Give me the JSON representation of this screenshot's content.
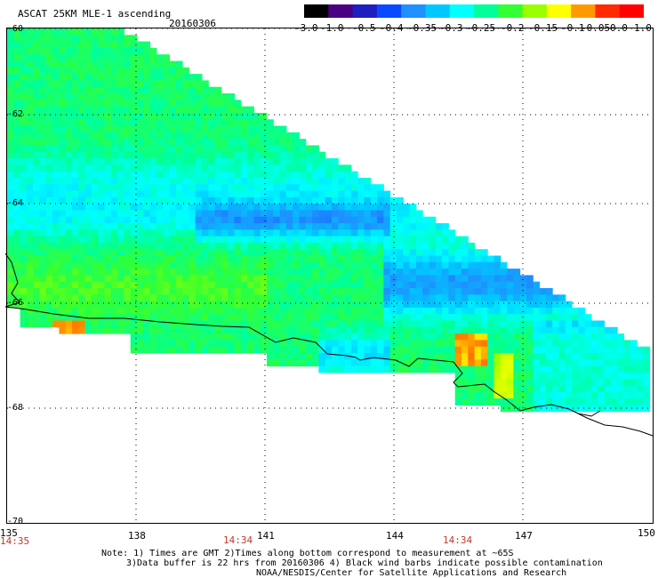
{
  "header": {
    "product": "ASCAT 25KM MLE-1 ascending",
    "date": "20160306"
  },
  "colorbar": {
    "labels": [
      "-3.0",
      "-1.0",
      "-0.5",
      "-0.4",
      "-0.35",
      "-0.3",
      "-0.25",
      "-0.2",
      "-0.15",
      "-0.1",
      "-0.05",
      "0.0",
      "1.0"
    ],
    "colors": [
      "#000000",
      "#4b0082",
      "#1f1fbf",
      "#0a4aff",
      "#1e90ff",
      "#00c8ff",
      "#00ffff",
      "#00ff9a",
      "#33ff33",
      "#99ff00",
      "#ffff00",
      "#ff9900",
      "#ff2a00",
      "#ff0000"
    ]
  },
  "map": {
    "lat_labels": [
      "-60",
      "-62",
      "-64",
      "-66",
      "-68",
      "-70"
    ],
    "lon_labels": [
      "135",
      "138",
      "141",
      "144",
      "147",
      "150"
    ],
    "time_labels": [
      "14:35",
      "14:34",
      "14:34"
    ]
  },
  "notes": {
    "line1": "Note: 1) Times are GMT 2)Times along bottom correspond to measurement at ~65S",
    "line2": "3)Data buffer is 22 hrs from 20160306 4) Black wind barbs indicate possible contamination",
    "line3": "NOAA/NESDIS/Center for Satellite Applications and Research"
  }
}
